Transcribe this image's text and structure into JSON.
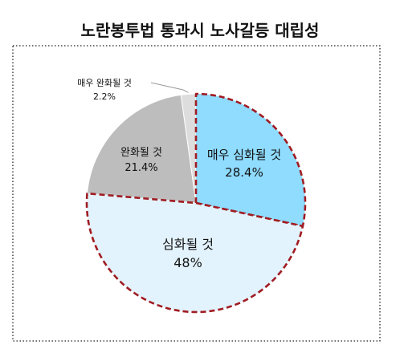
{
  "chart_data": {
    "type": "pie",
    "title": "노란봉투법 통과시 노사갈등 대립성",
    "categories": [
      "매우 심화될 것",
      "심화될 것",
      "완화될 것",
      "매우 완화될 것"
    ],
    "values": [
      28.4,
      48,
      21.4,
      2.2
    ],
    "value_labels": [
      "28.4%",
      "48%",
      "21.4%",
      "2.2%"
    ],
    "colors": [
      "#8fdcff",
      "#e3f3fd",
      "#bdbdbd",
      "#dddddd"
    ],
    "highlight_color": "#a01c22",
    "highlighted": [
      "매우 심화될 것",
      "심화될 것"
    ],
    "start_angle_deg": 0,
    "direction": "clockwise",
    "legend": "none"
  }
}
